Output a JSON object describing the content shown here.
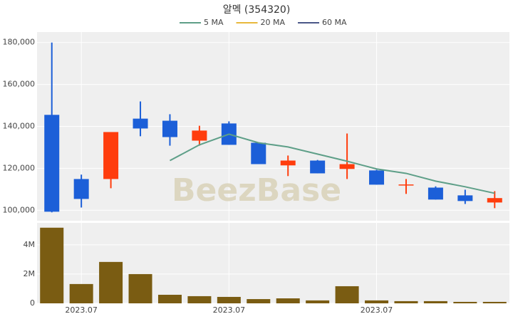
{
  "chart_data": [
    {
      "type": "candlestick",
      "title": "알멕 (354320)",
      "watermark": "BeezBase",
      "open": [
        145500,
        114900,
        114900,
        143700,
        142700,
        133200,
        141400,
        132200,
        121400,
        123700,
        119700,
        119000,
        112100,
        110800,
        107100,
        103700
      ],
      "high": [
        180000,
        117000,
        137300,
        151900,
        145800,
        140300,
        142400,
        132200,
        126100,
        124000,
        136600,
        119300,
        114900,
        111400,
        109800,
        109100
      ],
      "low": [
        99000,
        101300,
        110500,
        135300,
        130800,
        130800,
        131200,
        122000,
        116300,
        117600,
        114900,
        112200,
        107800,
        105100,
        103000,
        101000
      ],
      "close": [
        99300,
        105400,
        137300,
        139000,
        134900,
        138000,
        131200,
        122000,
        123700,
        117600,
        122000,
        112200,
        112300,
        105100,
        104400,
        105800
      ],
      "up_color": "#ff3d0d",
      "down_color": "#1c5fd8",
      "series": [
        {
          "name": "5 MA",
          "color": "#5e9f88",
          "values": [
            null,
            null,
            null,
            null,
            123700,
            131200,
            136300,
            132200,
            130200,
            126800,
            123400,
            119700,
            117600,
            113900,
            111200,
            108100
          ]
        },
        {
          "name": "20 MA",
          "color": "#e8b83c",
          "values": [
            null,
            null,
            null,
            null,
            null,
            null,
            null,
            null,
            null,
            null,
            null,
            null,
            null,
            null,
            null,
            null
          ]
        },
        {
          "name": "60 MA",
          "color": "#4a5788",
          "values": [
            null,
            null,
            null,
            null,
            null,
            null,
            null,
            null,
            null,
            null,
            null,
            null,
            null,
            null,
            null,
            null
          ]
        }
      ],
      "ylim": [
        95000,
        185000
      ],
      "yticks": [
        {
          "value": 100000,
          "label": "100,000"
        },
        {
          "value": 120000,
          "label": "120,000"
        },
        {
          "value": 140000,
          "label": "140,000"
        },
        {
          "value": 160000,
          "label": "160,000"
        },
        {
          "value": 180000,
          "label": "180,000"
        }
      ],
      "grid": true,
      "legend": "top"
    },
    {
      "type": "bar",
      "categories": [
        null,
        "2023.07",
        null,
        null,
        null,
        null,
        "2023.07",
        null,
        null,
        null,
        null,
        "2023.07",
        null,
        null,
        null,
        null
      ],
      "values": [
        5170000,
        1320000,
        2830000,
        2000000,
        585000,
        490000,
        440000,
        290000,
        340000,
        200000,
        1170000,
        200000,
        150000,
        150000,
        100000,
        100000
      ],
      "color": "#7a5c12",
      "ylim": [
        0,
        5500000
      ],
      "yticks": [
        0,
        {
          "value": 2000000,
          "label": "2M"
        },
        {
          "value": 4000000,
          "label": "4M"
        }
      ],
      "grid": true
    }
  ]
}
